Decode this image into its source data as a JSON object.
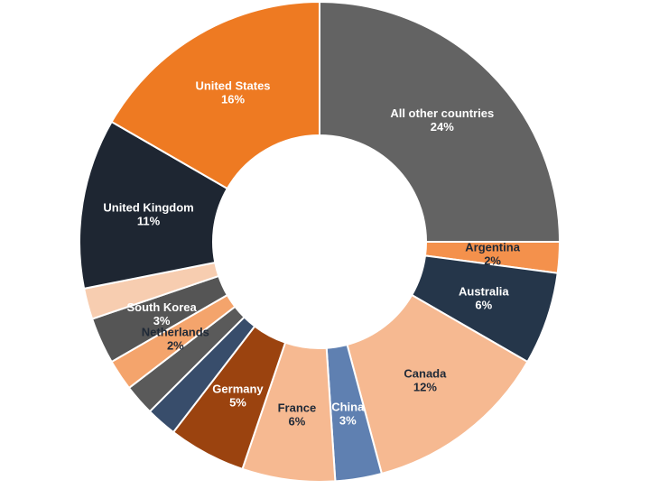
{
  "chart_data": {
    "type": "pie",
    "variant": "donut",
    "title": "",
    "slices": [
      {
        "label": "All other countries",
        "value": 24,
        "value_label": "24%",
        "color": "#636363",
        "text_color": "#ffffff",
        "show_label": true
      },
      {
        "label": "Argentina",
        "value": 2,
        "value_label": "2%",
        "color": "#f4914c",
        "text_color": "#1f2937",
        "show_label": true
      },
      {
        "label": "Australia",
        "value": 6,
        "value_label": "6%",
        "color": "#25364a",
        "text_color": "#ffffff",
        "show_label": true
      },
      {
        "label": "Canada",
        "value": 12,
        "value_label": "12%",
        "color": "#f6b991",
        "text_color": "#1f2937",
        "show_label": true
      },
      {
        "label": "China",
        "value": 3,
        "value_label": "3%",
        "color": "#5f80b1",
        "text_color": "#ffffff",
        "show_label": true
      },
      {
        "label": "France",
        "value": 6,
        "value_label": "6%",
        "color": "#f6b991",
        "text_color": "#1f2937",
        "show_label": true
      },
      {
        "label": "Germany",
        "value": 5,
        "value_label": "5%",
        "color": "#9b430f",
        "text_color": "#ffffff",
        "show_label": true
      },
      {
        "label": "",
        "value": 2,
        "value_label": "",
        "color": "#384d6b",
        "text_color": "#ffffff",
        "show_label": false
      },
      {
        "label": "",
        "value": 2,
        "value_label": "",
        "color": "#5a5a5a",
        "text_color": "#ffffff",
        "show_label": false
      },
      {
        "label": "Netherlands",
        "value": 2,
        "value_label": "2%",
        "color": "#f4a46c",
        "text_color": "#1f2937",
        "show_label": true
      },
      {
        "label": "South Korea",
        "value": 3,
        "value_label": "3%",
        "color": "#555555",
        "text_color": "#ffffff",
        "show_label": true
      },
      {
        "label": "",
        "value": 2,
        "value_label": "",
        "color": "#f7cdb0",
        "text_color": "#1f2937",
        "show_label": false
      },
      {
        "label": "United Kingdom",
        "value": 11,
        "value_label": "11%",
        "color": "#1e2632",
        "text_color": "#ffffff",
        "show_label": true
      },
      {
        "label": "United States",
        "value": 16,
        "value_label": "16%",
        "color": "#ee7a22",
        "text_color": "#ffffff",
        "show_label": true
      }
    ]
  }
}
